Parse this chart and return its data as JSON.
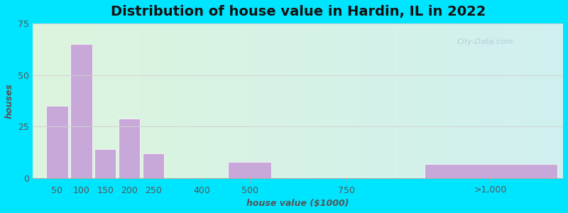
{
  "title": "Distribution of house value in Hardin, IL in 2022",
  "xlabel": "house value ($1000)",
  "ylabel": "houses",
  "bar_color": "#c8a8d8",
  "bar_edgecolor": "#ffffff",
  "ylim": [
    0,
    75
  ],
  "yticks": [
    0,
    25,
    50,
    75
  ],
  "background_outer": "#00e5ff",
  "grid_color": "#d0d0d0",
  "title_fontsize": 14,
  "axis_fontsize": 9,
  "label_fontsize": 9,
  "values": [
    35,
    65,
    14,
    29,
    12,
    8,
    7
  ],
  "xtick_labels": [
    "50",
    "100",
    "150",
    "200",
    "250",
    "400",
    "500",
    "750",
    ">1,000"
  ],
  "xtick_positions": [
    1,
    2,
    3,
    4,
    5,
    7,
    9,
    13,
    19
  ],
  "bar_centers": [
    1,
    2,
    3,
    4,
    5,
    9,
    19
  ],
  "bar_widths": [
    0.9,
    0.9,
    0.9,
    0.9,
    0.9,
    1.8,
    5.5
  ],
  "xlim": [
    0,
    22
  ],
  "watermark": "City-Data.com"
}
